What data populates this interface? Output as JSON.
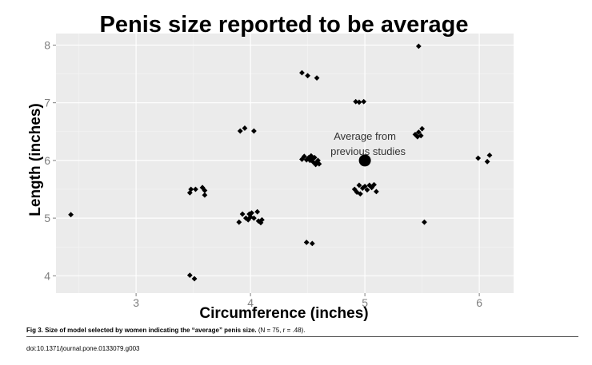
{
  "chart_data": {
    "type": "scatter",
    "title": "Penis size reported to be average",
    "xlabel": "Circumference (inches)",
    "ylabel": "Length (inches)",
    "xlim": [
      2.3,
      6.3
    ],
    "ylim": [
      3.7,
      8.2
    ],
    "xticks": [
      3,
      4,
      5,
      6
    ],
    "yticks": [
      4,
      5,
      6,
      7,
      8
    ],
    "grid": true,
    "points": [
      [
        2.43,
        5.06
      ],
      [
        3.47,
        5.44
      ],
      [
        3.48,
        5.5
      ],
      [
        3.52,
        5.5
      ],
      [
        3.58,
        5.53
      ],
      [
        3.6,
        5.48
      ],
      [
        3.6,
        5.4
      ],
      [
        3.47,
        4.01
      ],
      [
        3.51,
        3.95
      ],
      [
        3.91,
        6.51
      ],
      [
        3.95,
        6.56
      ],
      [
        4.03,
        6.51
      ],
      [
        3.9,
        4.93
      ],
      [
        3.93,
        5.07
      ],
      [
        3.96,
        5.0
      ],
      [
        3.98,
        4.97
      ],
      [
        3.99,
        5.07
      ],
      [
        4.0,
        5.02
      ],
      [
        4.01,
        5.09
      ],
      [
        4.03,
        5.0
      ],
      [
        4.06,
        5.11
      ],
      [
        4.07,
        4.95
      ],
      [
        4.09,
        4.92
      ],
      [
        4.1,
        4.97
      ],
      [
        4.45,
        7.52
      ],
      [
        4.5,
        7.47
      ],
      [
        4.58,
        7.43
      ],
      [
        4.45,
        6.02
      ],
      [
        4.47,
        6.07
      ],
      [
        4.49,
        6.01
      ],
      [
        4.51,
        6.05
      ],
      [
        4.52,
        6.0
      ],
      [
        4.53,
        6.08
      ],
      [
        4.54,
        6.03
      ],
      [
        4.55,
        5.97
      ],
      [
        4.56,
        6.05
      ],
      [
        4.57,
        5.93
      ],
      [
        4.58,
        5.97
      ],
      [
        4.59,
        6.0
      ],
      [
        4.6,
        5.94
      ],
      [
        4.49,
        4.58
      ],
      [
        4.54,
        4.56
      ],
      [
        4.92,
        7.02
      ],
      [
        4.95,
        7.01
      ],
      [
        4.99,
        7.02
      ],
      [
        4.91,
        5.5
      ],
      [
        4.93,
        5.45
      ],
      [
        4.95,
        5.57
      ],
      [
        4.96,
        5.42
      ],
      [
        4.98,
        5.52
      ],
      [
        5.0,
        5.55
      ],
      [
        5.02,
        5.49
      ],
      [
        5.04,
        5.57
      ],
      [
        5.06,
        5.53
      ],
      [
        5.08,
        5.58
      ],
      [
        5.1,
        5.46
      ],
      [
        5.44,
        6.45
      ],
      [
        5.46,
        6.41
      ],
      [
        5.47,
        6.49
      ],
      [
        5.49,
        6.43
      ],
      [
        5.5,
        6.55
      ],
      [
        5.47,
        7.98
      ],
      [
        5.52,
        4.93
      ],
      [
        5.99,
        6.04
      ],
      [
        6.07,
        5.98
      ],
      [
        6.09,
        6.09
      ]
    ],
    "highlight": {
      "x": 5.0,
      "y": 6.0,
      "label_line1": "Average from",
      "label_line2": "previous studies"
    }
  },
  "caption": {
    "bold": "Fig 3. Size of model selected by women indicating the “average” penis size.",
    "rest": " (N = 75, r = .48)."
  },
  "doi": "doi:10.1371/journal.pone.0133079.g003",
  "colors": {
    "panel": "#ebebeb",
    "grid": "#ffffff",
    "point": "#000000"
  }
}
